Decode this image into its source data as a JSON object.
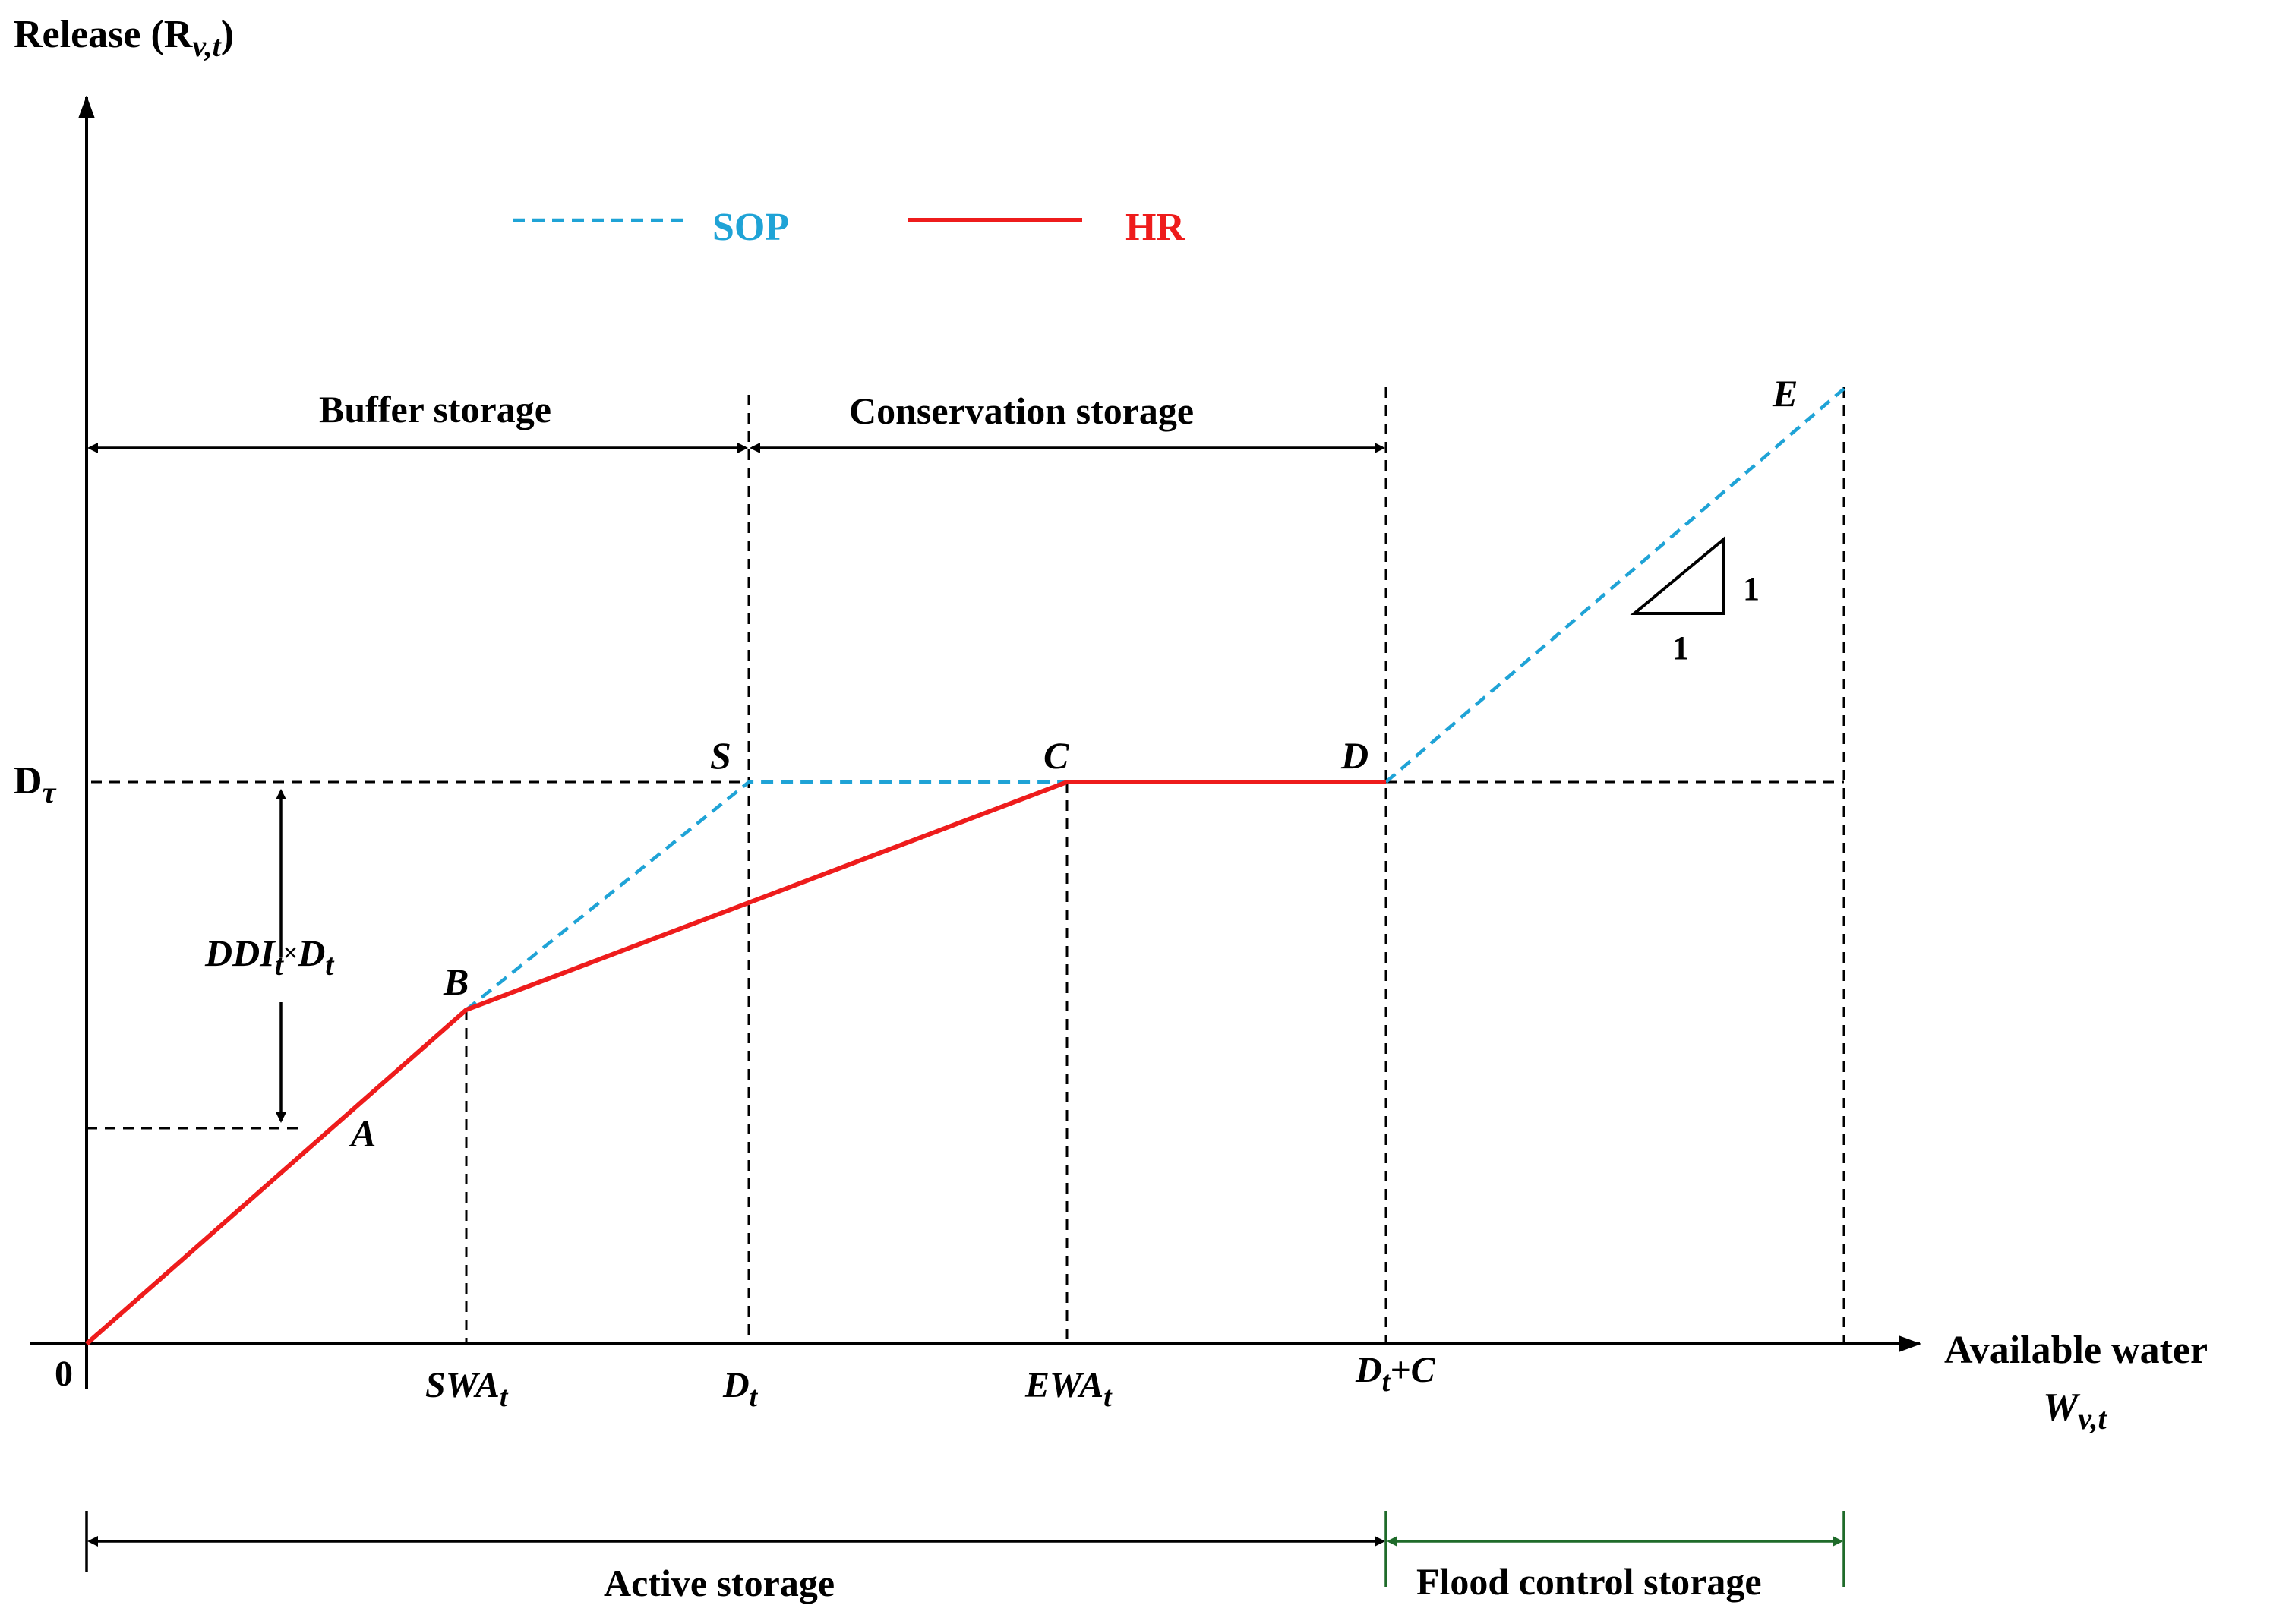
{
  "axes": {
    "y_label": "Release (R",
    "y_label_sub": "v,t",
    "y_label_close": ")",
    "x_label_line1": "Available water",
    "x_label_line2": "W",
    "x_label_line2_sub": "v,t",
    "origin": "0"
  },
  "legend": {
    "sop_label": "SOP",
    "hr_label": "HR",
    "sop_color": "#1fa3d6",
    "hr_color": "#ee1c1c"
  },
  "x_ticks": {
    "swa": "SWA",
    "swa_sub": "t",
    "dt": "D",
    "dt_sub": "t",
    "ewa": "EWA",
    "ewa_sub": "t",
    "dtc": "D",
    "dtc_sub": "t",
    "dtc_suffix": "+C"
  },
  "y_ticks": {
    "dtau": "D",
    "dtau_sub": "τ"
  },
  "points": {
    "A": "A",
    "B": "B",
    "S": "S",
    "C": "C",
    "D": "D",
    "E": "E"
  },
  "zones": {
    "buffer": "Buffer storage",
    "conservation": "Conservation storage",
    "active": "Active storage",
    "flood": "Flood control storage"
  },
  "annotations": {
    "ddi": "DDI",
    "ddi_sub": "t",
    "ddi_times": "×",
    "ddi_d": "D",
    "ddi_d_sub": "t",
    "slope_rise": "1",
    "slope_run": "1"
  }
}
